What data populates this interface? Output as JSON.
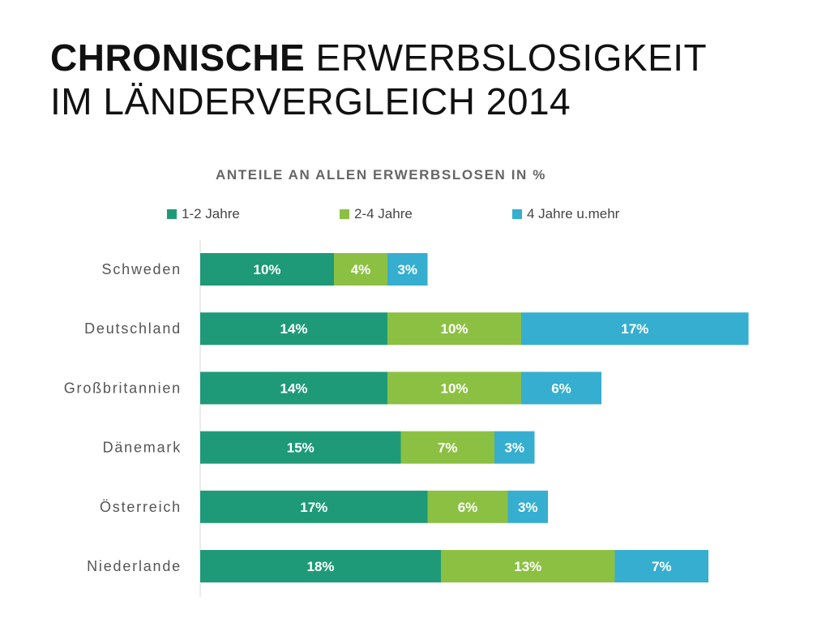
{
  "title": {
    "line1_bold": "CHRONISCHE",
    "line1_rest": " ERWERBSLOSIGKEIT",
    "line2": "IM LÄNDERVERGLEICH 2014"
  },
  "chart_data": {
    "type": "bar",
    "orientation": "horizontal",
    "stacked": true,
    "subtitle": "ANTEILE AN ALLEN ERWERBSLOSEN IN %",
    "categories": [
      "Schweden",
      "Deutschland",
      "Großbritannien",
      "Dänemark",
      "Österreich",
      "Niederlande"
    ],
    "series": [
      {
        "name": "1-2 Jahre",
        "color": "#1f9a78",
        "values": [
          10,
          14,
          14,
          15,
          17,
          18
        ]
      },
      {
        "name": "2-4 Jahre",
        "color": "#8cc043",
        "values": [
          4,
          10,
          10,
          7,
          6,
          13
        ]
      },
      {
        "name": "4 Jahre u.mehr",
        "color": "#36aecf",
        "values": [
          3,
          17,
          6,
          3,
          3,
          7
        ]
      }
    ],
    "value_suffix": "%",
    "xlim": [
      0,
      41
    ],
    "legend_position": "top",
    "grid": false
  }
}
